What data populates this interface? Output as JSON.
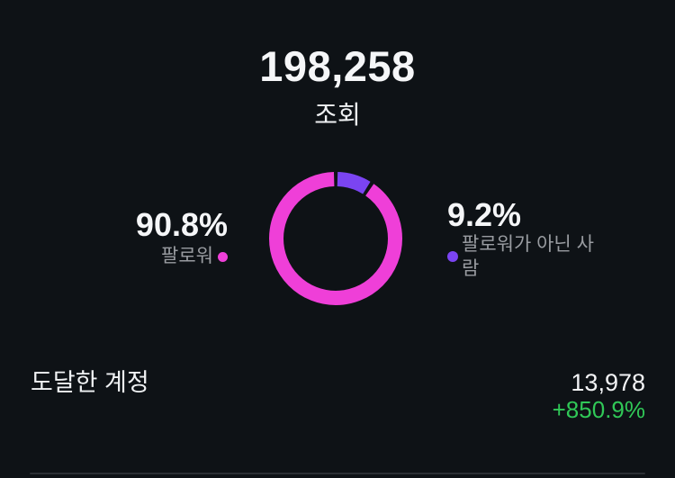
{
  "summary": {
    "total": "198,258",
    "metric_label": "조회"
  },
  "chart_data": {
    "type": "pie",
    "donut": true,
    "title": "조회",
    "total_label": "198,258",
    "slices": [
      {
        "label": "팔로워가 아닌 사람",
        "value": 9.2,
        "display": "9.2%",
        "color": "#7b44f2"
      },
      {
        "label": "팔로워",
        "value": 90.8,
        "display": "90.8%",
        "color": "#ef3fd8"
      }
    ],
    "legend_position": "sides",
    "background": "#0e1216"
  },
  "legend": {
    "followers": {
      "percent": "90.8%",
      "label": "팔로워",
      "color": "#ef3fd8"
    },
    "non_followers": {
      "percent": "9.2%",
      "label": "팔로워가 아닌 사람",
      "color": "#7b44f2"
    }
  },
  "stats": [
    {
      "label": "도달한 계정",
      "value": "13,978",
      "change": "+850.9%",
      "change_color": "#30c857"
    }
  ]
}
